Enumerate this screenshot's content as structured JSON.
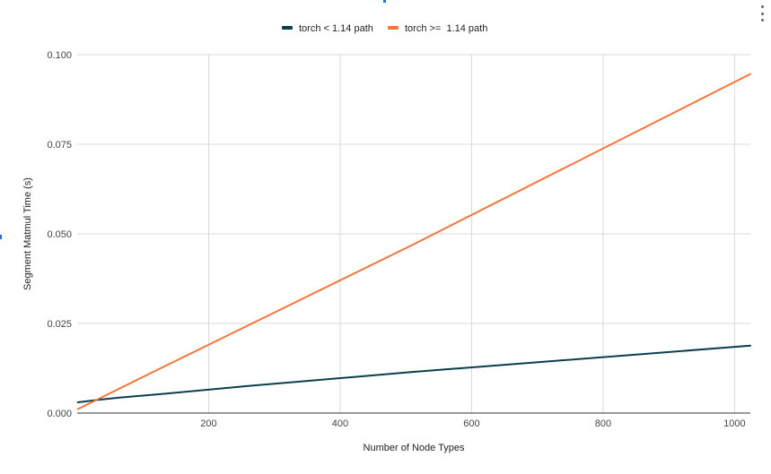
{
  "chart_data": {
    "type": "line",
    "title": "",
    "xlabel": "Number of Node Types",
    "ylabel": "Segment Matmul Time (s)",
    "xlim": [
      0,
      1024
    ],
    "ylim": [
      0,
      0.1
    ],
    "xticks": [
      200,
      400,
      600,
      800,
      1000
    ],
    "xtick_labels": [
      "200",
      "400",
      "600",
      "800",
      "1000"
    ],
    "yticks": [
      0,
      0.025,
      0.05,
      0.075,
      0.1
    ],
    "ytick_labels": [
      "0.000",
      "0.025",
      "0.050",
      "0.075",
      "0.100"
    ],
    "grid": true,
    "legend_position": "top-center",
    "series": [
      {
        "name": "torch < 1.14 path",
        "color": "#0b3d4f",
        "x": [
          1,
          32,
          64,
          128,
          256,
          512,
          1024
        ],
        "y": [
          0.003,
          0.0037,
          0.0043,
          0.0053,
          0.0075,
          0.0115,
          0.0188
        ]
      },
      {
        "name": "torch >=  1.14 path",
        "color": "#f4763b",
        "x": [
          1,
          32,
          64,
          128,
          256,
          512,
          1024
        ],
        "y": [
          0.0011,
          0.0039,
          0.0068,
          0.0126,
          0.0241,
          0.0471,
          0.0946
        ]
      }
    ]
  },
  "toolbar": {
    "menu_icon": "more-vert-icon"
  }
}
